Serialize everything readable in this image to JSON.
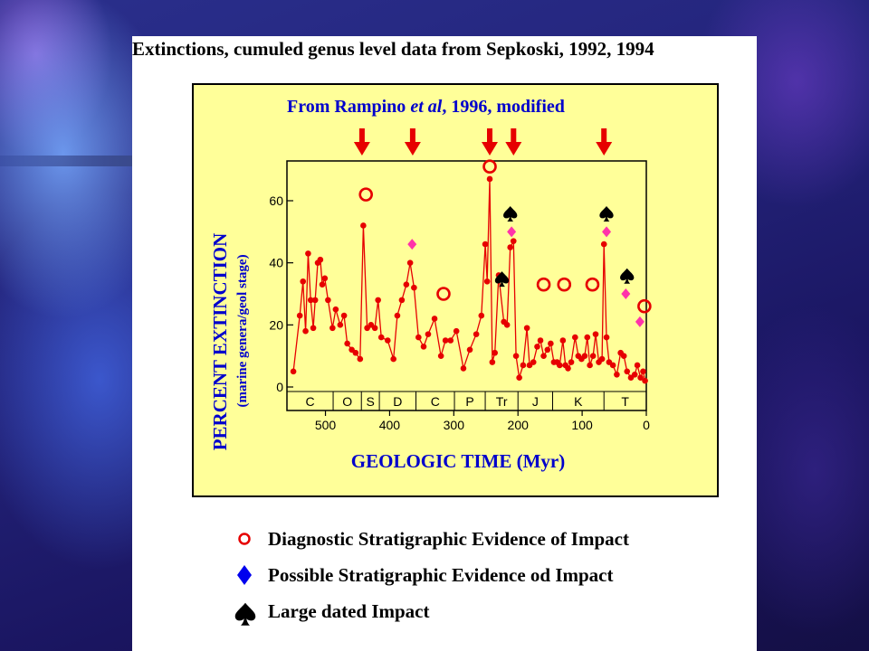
{
  "slide": {
    "title": "Extinctions, cumuled genus level data from Sepkoski, 1992, 1994"
  },
  "colors": {
    "background": "#1e1e72",
    "panel": "#ffff99",
    "line": "#e60000",
    "diamond": "#ff33aa",
    "legend_diamond": "#0000ee",
    "text_blue": "#0000cc"
  },
  "chart_data": {
    "type": "line",
    "subtitle": "From Rampino et al, 1996, modified",
    "subtitle_parts": {
      "before": "From Rampino ",
      "italic": "et al",
      "after": ", 1996, modified"
    },
    "xlabel": "GEOLOGIC TIME  (Myr)",
    "ylabel": "PERCENT EXTINCTION",
    "ylabel2": "(marine genera/geol stage)",
    "xlim": [
      560,
      0
    ],
    "ylim": [
      0,
      72
    ],
    "x_ticks": [
      500,
      400,
      300,
      200,
      100,
      0
    ],
    "y_ticks": [
      0,
      20,
      40,
      60
    ],
    "grid": false,
    "periods": [
      "C",
      "O",
      "S",
      "D",
      "C",
      "P",
      "Tr",
      "J",
      "K",
      "T"
    ],
    "period_boundaries": [
      488,
      444,
      416,
      359,
      299,
      251,
      200,
      146,
      66
    ],
    "series": [
      {
        "values": [
          [
            550,
            5
          ],
          [
            540,
            23
          ],
          [
            535,
            34
          ],
          [
            531,
            18
          ],
          [
            527,
            43
          ],
          [
            523,
            28
          ],
          [
            519,
            19
          ],
          [
            516,
            28
          ],
          [
            512,
            40
          ],
          [
            508,
            41
          ],
          [
            505,
            33
          ],
          [
            501,
            35
          ],
          [
            496,
            28
          ],
          [
            489,
            19
          ],
          [
            484,
            25
          ],
          [
            477,
            20
          ],
          [
            471,
            23
          ],
          [
            466,
            14
          ],
          [
            459,
            12
          ],
          [
            453,
            11
          ],
          [
            446,
            9
          ],
          [
            441,
            52
          ],
          [
            435,
            19
          ],
          [
            429,
            20
          ],
          [
            423,
            19
          ],
          [
            418,
            28
          ],
          [
            413,
            16
          ],
          [
            403,
            15
          ],
          [
            394,
            9
          ],
          [
            388,
            23
          ],
          [
            381,
            28
          ],
          [
            374,
            33
          ],
          [
            368,
            40
          ],
          [
            362,
            32
          ],
          [
            355,
            16
          ],
          [
            347,
            13
          ],
          [
            340,
            17
          ],
          [
            330,
            22
          ],
          [
            320,
            10
          ],
          [
            313,
            15
          ],
          [
            305,
            15
          ],
          [
            296,
            18
          ],
          [
            285,
            6
          ],
          [
            275,
            12
          ],
          [
            265,
            17
          ],
          [
            257,
            23
          ],
          [
            251,
            46
          ],
          [
            248,
            34
          ],
          [
            244,
            67
          ],
          [
            240,
            8
          ],
          [
            236,
            11
          ],
          [
            230,
            36
          ],
          [
            222,
            21
          ],
          [
            217,
            20
          ],
          [
            212,
            45
          ],
          [
            207,
            47
          ],
          [
            203,
            10
          ],
          [
            198,
            3
          ],
          [
            192,
            7
          ],
          [
            186,
            19
          ],
          [
            182,
            7
          ],
          [
            176,
            8
          ],
          [
            170,
            13
          ],
          [
            165,
            15
          ],
          [
            160,
            10
          ],
          [
            154,
            12
          ],
          [
            149,
            14
          ],
          [
            144,
            8
          ],
          [
            139,
            8
          ],
          [
            135,
            7
          ],
          [
            130,
            15
          ],
          [
            126,
            7
          ],
          [
            122,
            6
          ],
          [
            117,
            8
          ],
          [
            111,
            16
          ],
          [
            106,
            10
          ],
          [
            101,
            9
          ],
          [
            96,
            10
          ],
          [
            92,
            16
          ],
          [
            88,
            7
          ],
          [
            83,
            10
          ],
          [
            79,
            17
          ],
          [
            74,
            8
          ],
          [
            69,
            9
          ],
          [
            66,
            46
          ],
          [
            62,
            16
          ],
          [
            58,
            8
          ],
          [
            52,
            7
          ],
          [
            46,
            4
          ],
          [
            40,
            11
          ],
          [
            35,
            10
          ],
          [
            30,
            5
          ],
          [
            24,
            3
          ],
          [
            18,
            4
          ],
          [
            14,
            7
          ],
          [
            9,
            3
          ],
          [
            5,
            5
          ],
          [
            2,
            2
          ]
        ]
      }
    ],
    "impact_arrows_x": [
      443,
      364,
      244,
      207,
      66
    ],
    "diagnostic_points": [
      [
        437,
        62
      ],
      [
        316,
        30
      ],
      [
        244,
        71
      ],
      [
        160,
        33
      ],
      [
        128,
        33
      ],
      [
        84,
        33
      ],
      [
        3,
        26
      ]
    ],
    "possible_points": [
      [
        365,
        46
      ],
      [
        210,
        50
      ],
      [
        62,
        50
      ],
      [
        32,
        30
      ],
      [
        10,
        21
      ]
    ],
    "large_impact_points": [
      [
        212,
        56
      ],
      [
        225,
        35
      ],
      [
        62,
        56
      ],
      [
        30,
        36
      ]
    ],
    "legend": [
      {
        "icon": "red-circle",
        "label": "Diagnostic Stratigraphic Evidence of Impact"
      },
      {
        "icon": "blue-diamond",
        "label": "Possible Stratigraphic Evidence od Impact"
      },
      {
        "icon": "spade",
        "label": "Large dated Impact"
      }
    ]
  }
}
